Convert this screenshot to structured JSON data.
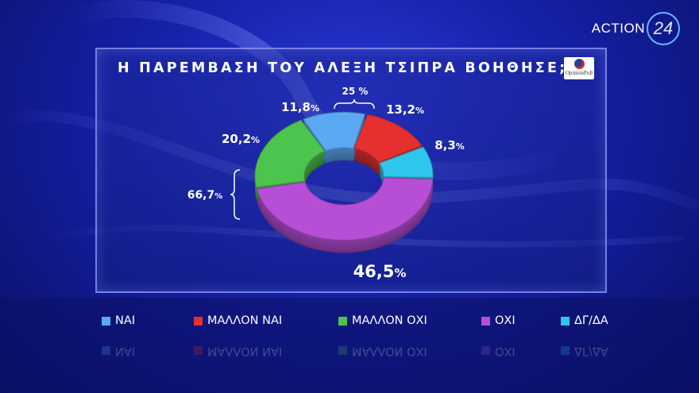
{
  "brand": {
    "logo_text": "ACTION",
    "logo_number": "24"
  },
  "poll_logo": {
    "text": "OpinionPoll"
  },
  "colors": {
    "nai": "#5ba9f2",
    "mallon_nai": "#e63030",
    "mallon_oxi": "#4cc44e",
    "oxi": "#b64fd6",
    "dg_da": "#2fc6ec"
  },
  "chart_data": {
    "type": "pie",
    "title": "Η ΠΑΡΕΜΒΑΣΗ ΤΟΥ ΑΛΕΞΗ ΤΣΙΠΡΑ ΒΟΗΘΗΣΕ;",
    "style": "donut-3d",
    "slices": [
      {
        "name": "ΝΑΙ",
        "value": 11.8,
        "label": "11,8",
        "color": "#5ba9f2"
      },
      {
        "name": "ΜΑΛΛΟΝ ΝΑΙ",
        "value": 13.2,
        "label": "13,2",
        "color": "#e63030"
      },
      {
        "name": "ΔΓ/ΔΑ",
        "value": 8.3,
        "label": "8,3",
        "color": "#2fc6ec"
      },
      {
        "name": "ΟΧΙ",
        "value": 46.5,
        "label": "46,5",
        "color": "#b64fd6"
      },
      {
        "name": "ΜΑΛΛΟΝ ΟΧΙ",
        "value": 20.2,
        "label": "20,2",
        "color": "#4cc44e"
      }
    ],
    "percent_sign": "%",
    "annotations": [
      {
        "text": "25",
        "unit": "%",
        "bracket_over": [
          "ΝΑΙ",
          "ΜΑΛΛΟΝ ΝΑΙ"
        ]
      },
      {
        "text": "66,7",
        "unit": "%",
        "bracket_over": [
          "ΜΑΛΛΟΝ ΟΧΙ",
          "ΟΧΙ"
        ]
      }
    ],
    "legend": [
      {
        "label": "ΝΑΙ",
        "color": "#5ba9f2"
      },
      {
        "label": "ΜΑΛΛΟΝ ΝΑΙ",
        "color": "#e63030"
      },
      {
        "label": "ΜΑΛΛΟΝ ΟΧΙ",
        "color": "#4cc44e"
      },
      {
        "label": "ΟΧΙ",
        "color": "#b64fd6"
      },
      {
        "label": "ΔΓ/ΔΑ",
        "color": "#2fc6ec"
      }
    ],
    "legend_placement": "bottom"
  }
}
